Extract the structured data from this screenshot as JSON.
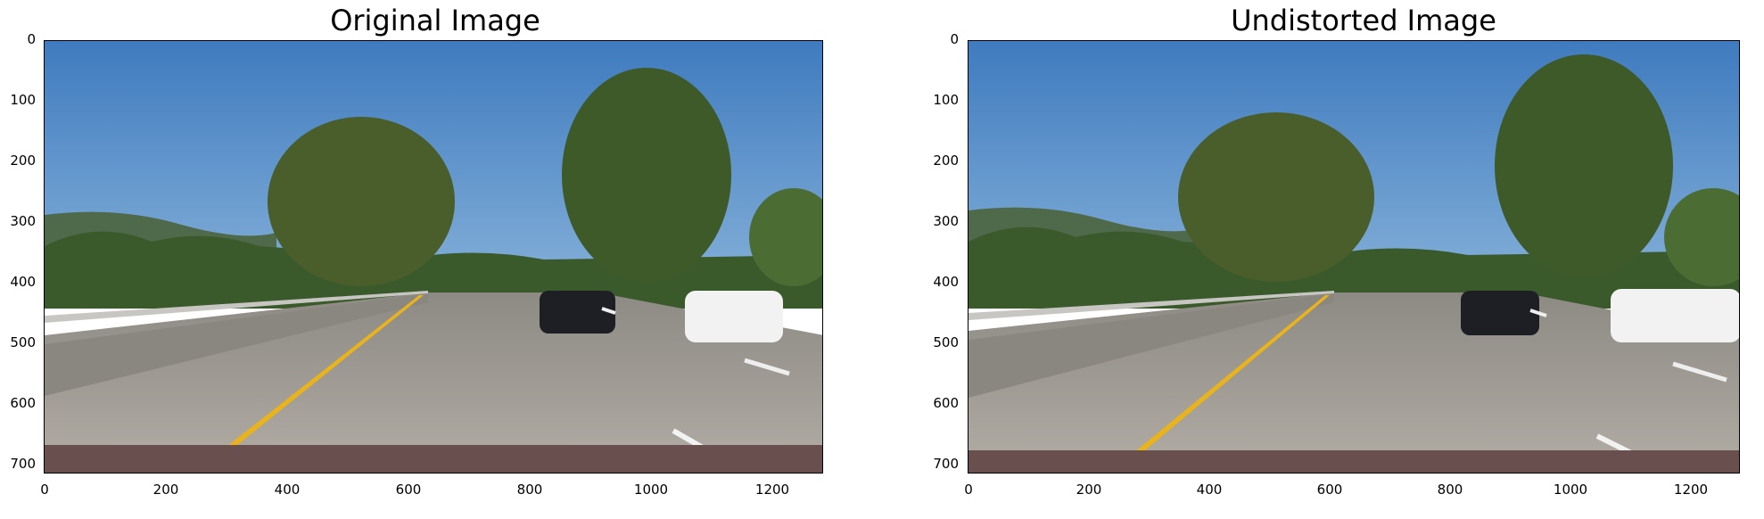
{
  "panels": [
    {
      "title": "Original Image",
      "yticks": [
        "0",
        "100",
        "200",
        "300",
        "400",
        "500",
        "600",
        "700"
      ],
      "xticks": [
        "0",
        "200",
        "400",
        "600",
        "800",
        "1000",
        "1200"
      ]
    },
    {
      "title": "Undistorted Image",
      "yticks": [
        "0",
        "100",
        "200",
        "300",
        "400",
        "500",
        "600",
        "700"
      ],
      "xticks": [
        "0",
        "200",
        "400",
        "600",
        "800",
        "1000",
        "1200"
      ]
    }
  ],
  "colors": {
    "sky": "#4f86c2",
    "road": "#a6a29b",
    "lane_yellow": "#e8b31c",
    "trees": "#3f5a2b"
  }
}
